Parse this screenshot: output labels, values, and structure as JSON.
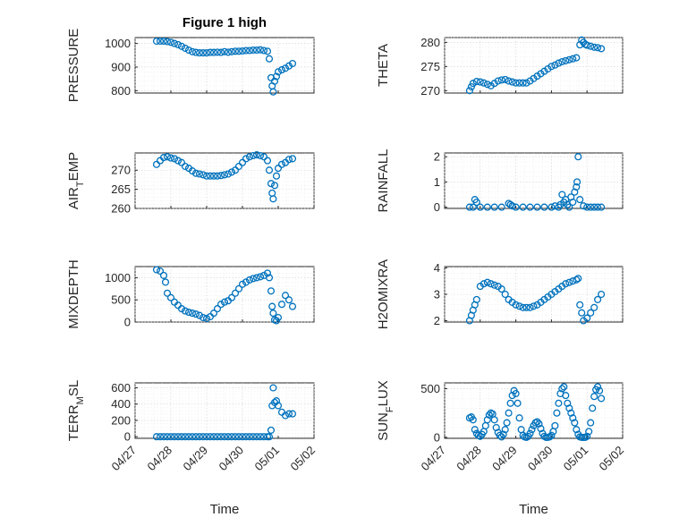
{
  "figure_title": "Figure 1 high",
  "colors": {
    "marker": "#0072bd",
    "axes": "#262626",
    "grid": "#d0d0d0"
  },
  "chart_data": [
    {
      "id": "pressure",
      "type": "scatter",
      "ylabel": "PRESSURE",
      "ylabel_sub": "",
      "ylabel_tail": "",
      "ylim": [
        790,
        1025
      ],
      "yticks": [
        800,
        900,
        1000
      ],
      "grid": true,
      "xlim": [
        0,
        5
      ],
      "xticks": [
        0,
        1,
        2,
        3,
        4,
        5
      ],
      "x": [
        0.6,
        0.7,
        0.8,
        0.9,
        1.0,
        1.1,
        1.2,
        1.3,
        1.4,
        1.5,
        1.6,
        1.7,
        1.8,
        1.9,
        2.0,
        2.1,
        2.2,
        2.3,
        2.4,
        2.5,
        2.6,
        2.7,
        2.8,
        2.9,
        3.0,
        3.1,
        3.2,
        3.3,
        3.4,
        3.5,
        3.6,
        3.7,
        3.75,
        3.8,
        3.83,
        3.86,
        3.9,
        3.95,
        4.0,
        4.1,
        4.2,
        4.3,
        4.4
      ],
      "y": [
        1010,
        1010,
        1010,
        1008,
        1005,
        1000,
        995,
        988,
        980,
        972,
        965,
        962,
        960,
        960,
        960,
        962,
        962,
        963,
        962,
        965,
        963,
        965,
        967,
        967,
        968,
        970,
        970,
        972,
        972,
        973,
        970,
        967,
        935,
        855,
        820,
        795,
        840,
        860,
        880,
        888,
        895,
        905,
        915
      ]
    },
    {
      "id": "theta",
      "type": "scatter",
      "ylabel": "THETA",
      "ylabel_sub": "",
      "ylabel_tail": "",
      "ylim": [
        269.5,
        281
      ],
      "yticks": [
        270,
        275,
        280
      ],
      "grid": true,
      "xlim": [
        0,
        5
      ],
      "xticks": [
        0,
        1,
        2,
        3,
        4,
        5
      ],
      "x": [
        0.7,
        0.75,
        0.8,
        0.9,
        1.0,
        1.1,
        1.2,
        1.3,
        1.4,
        1.5,
        1.6,
        1.7,
        1.8,
        1.9,
        2.0,
        2.1,
        2.2,
        2.3,
        2.4,
        2.5,
        2.6,
        2.7,
        2.8,
        2.9,
        3.0,
        3.1,
        3.2,
        3.3,
        3.4,
        3.5,
        3.6,
        3.7,
        3.8,
        3.85,
        3.9,
        3.95,
        4.0,
        4.1,
        4.2,
        4.3,
        4.4
      ],
      "y": [
        270.0,
        270.8,
        271.5,
        271.9,
        271.8,
        271.6,
        271.3,
        271.0,
        271.5,
        272.0,
        272.2,
        272.3,
        272.0,
        271.8,
        271.6,
        271.6,
        271.6,
        271.6,
        272.0,
        272.5,
        273.0,
        273.5,
        274.0,
        274.5,
        275.0,
        275.3,
        275.7,
        276.0,
        276.2,
        276.4,
        276.6,
        276.8,
        279.5,
        280.5,
        280.0,
        279.6,
        279.4,
        279.2,
        279.0,
        278.9,
        278.7
      ]
    },
    {
      "id": "air_temp",
      "type": "scatter",
      "ylabel": "AIR",
      "ylabel_sub": "T",
      "ylabel_tail": "EMP",
      "ylim": [
        260,
        274.5
      ],
      "yticks": [
        260,
        265,
        270
      ],
      "grid": true,
      "xlim": [
        0,
        5
      ],
      "xticks": [
        0,
        1,
        2,
        3,
        4,
        5
      ],
      "x": [
        0.6,
        0.7,
        0.8,
        0.9,
        1.0,
        1.1,
        1.2,
        1.3,
        1.4,
        1.5,
        1.6,
        1.7,
        1.8,
        1.9,
        2.0,
        2.1,
        2.2,
        2.3,
        2.4,
        2.5,
        2.6,
        2.7,
        2.8,
        2.9,
        3.0,
        3.1,
        3.2,
        3.3,
        3.4,
        3.5,
        3.6,
        3.7,
        3.75,
        3.8,
        3.83,
        3.86,
        3.9,
        3.95,
        4.0,
        4.1,
        4.2,
        4.3,
        4.4
      ],
      "y": [
        271.5,
        272.5,
        273.3,
        273.5,
        273.2,
        273.0,
        272.5,
        272.0,
        271.0,
        270.5,
        269.8,
        269.2,
        269.0,
        268.8,
        268.5,
        268.5,
        268.5,
        268.5,
        268.6,
        268.8,
        269.0,
        269.5,
        270.0,
        271.0,
        272.0,
        273.0,
        273.5,
        273.8,
        274.0,
        273.8,
        273.5,
        272.5,
        270.0,
        266.5,
        264.0,
        262.5,
        266.0,
        268.5,
        270.5,
        271.5,
        272.0,
        272.8,
        273.0
      ]
    },
    {
      "id": "rainfall",
      "type": "scatter",
      "ylabel": "RAINFALL",
      "ylabel_sub": "",
      "ylabel_tail": "",
      "ylim": [
        -0.05,
        2.15
      ],
      "yticks": [
        0,
        1,
        2
      ],
      "grid": true,
      "xlim": [
        0,
        5
      ],
      "xticks": [
        0,
        1,
        2,
        3,
        4,
        5
      ],
      "x": [
        0.7,
        0.8,
        0.85,
        0.9,
        1.0,
        1.2,
        1.4,
        1.6,
        1.8,
        1.85,
        1.9,
        2.0,
        2.2,
        2.4,
        2.6,
        2.8,
        3.0,
        3.1,
        3.2,
        3.25,
        3.3,
        3.35,
        3.4,
        3.45,
        3.5,
        3.55,
        3.6,
        3.65,
        3.7,
        3.72,
        3.75,
        3.8,
        3.9,
        4.0,
        4.1,
        4.2,
        4.3,
        4.4
      ],
      "y": [
        0,
        0,
        0.3,
        0.2,
        0,
        0,
        0,
        0,
        0.15,
        0.1,
        0.05,
        0,
        0,
        0,
        0,
        0,
        0,
        0.05,
        0,
        0.1,
        0.5,
        0.2,
        0.3,
        0.1,
        0,
        0.4,
        0.2,
        0.6,
        0.8,
        1.0,
        2.0,
        0.3,
        0.05,
        0,
        0,
        0,
        0,
        0
      ]
    },
    {
      "id": "mixdepth",
      "type": "scatter",
      "ylabel": "MIXDEPTH",
      "ylabel_sub": "",
      "ylabel_tail": "",
      "ylim": [
        0,
        1250
      ],
      "yticks": [
        0,
        500,
        1000
      ],
      "grid": true,
      "xlim": [
        0,
        5
      ],
      "xticks": [
        0,
        1,
        2,
        3,
        4,
        5
      ],
      "x": [
        0.6,
        0.7,
        0.8,
        0.85,
        0.9,
        1.0,
        1.1,
        1.2,
        1.3,
        1.4,
        1.5,
        1.6,
        1.7,
        1.8,
        1.9,
        2.0,
        2.1,
        2.2,
        2.3,
        2.4,
        2.5,
        2.6,
        2.7,
        2.8,
        2.9,
        3.0,
        3.1,
        3.2,
        3.3,
        3.4,
        3.5,
        3.6,
        3.7,
        3.75,
        3.8,
        3.83,
        3.86,
        3.9,
        3.95,
        4.0,
        4.1,
        4.2,
        4.3,
        4.4
      ],
      "y": [
        1180,
        1150,
        1050,
        900,
        650,
        550,
        450,
        380,
        300,
        250,
        220,
        200,
        180,
        150,
        100,
        80,
        120,
        200,
        300,
        400,
        450,
        480,
        550,
        650,
        750,
        850,
        900,
        950,
        980,
        1000,
        1020,
        1050,
        1100,
        1000,
        700,
        350,
        200,
        50,
        30,
        100,
        400,
        600,
        500,
        350
      ]
    },
    {
      "id": "h2omixra",
      "type": "scatter",
      "ylabel": "H2OMIXRA",
      "ylabel_sub": "",
      "ylabel_tail": "",
      "ylim": [
        1.95,
        4.05
      ],
      "yticks": [
        2,
        3,
        4
      ],
      "grid": true,
      "xlim": [
        0,
        5
      ],
      "xticks": [
        0,
        1,
        2,
        3,
        4,
        5
      ],
      "x": [
        0.7,
        0.75,
        0.8,
        0.85,
        0.9,
        1.0,
        1.1,
        1.2,
        1.3,
        1.4,
        1.5,
        1.6,
        1.7,
        1.8,
        1.9,
        2.0,
        2.1,
        2.2,
        2.3,
        2.4,
        2.5,
        2.6,
        2.7,
        2.8,
        2.9,
        3.0,
        3.1,
        3.2,
        3.3,
        3.4,
        3.5,
        3.6,
        3.7,
        3.75,
        3.8,
        3.85,
        3.9,
        4.0,
        4.1,
        4.2,
        4.3,
        4.4
      ],
      "y": [
        2.0,
        2.2,
        2.4,
        2.6,
        2.8,
        3.3,
        3.4,
        3.45,
        3.4,
        3.35,
        3.3,
        3.2,
        3.0,
        2.8,
        2.7,
        2.6,
        2.55,
        2.5,
        2.5,
        2.5,
        2.55,
        2.6,
        2.7,
        2.8,
        2.9,
        3.0,
        3.1,
        3.2,
        3.3,
        3.4,
        3.45,
        3.5,
        3.55,
        3.6,
        2.6,
        2.3,
        2.0,
        2.1,
        2.3,
        2.5,
        2.8,
        3.0
      ]
    },
    {
      "id": "terr_msl",
      "type": "scatter",
      "ylabel": "TERR",
      "ylabel_sub": "M",
      "ylabel_tail": "SL",
      "ylim": [
        -20,
        660
      ],
      "yticks": [
        0,
        200,
        400,
        600
      ],
      "grid": true,
      "xlim": [
        0,
        5
      ],
      "xticks": [
        0,
        1,
        2,
        3,
        4,
        5
      ],
      "xticklabels": [
        "04/27",
        "04/28",
        "04/29",
        "04/30",
        "05/01",
        "05/02"
      ],
      "xlabel": "Time",
      "x": [
        0.6,
        0.7,
        0.8,
        0.9,
        1.0,
        1.1,
        1.2,
        1.3,
        1.4,
        1.5,
        1.6,
        1.7,
        1.8,
        1.9,
        2.0,
        2.1,
        2.2,
        2.3,
        2.4,
        2.5,
        2.6,
        2.7,
        2.8,
        2.9,
        3.0,
        3.1,
        3.2,
        3.3,
        3.4,
        3.5,
        3.6,
        3.7,
        3.75,
        3.8,
        3.83,
        3.86,
        3.9,
        3.95,
        4.0,
        4.1,
        4.2,
        4.3,
        4.4
      ],
      "y": [
        0,
        0,
        0,
        0,
        0,
        0,
        0,
        0,
        0,
        0,
        0,
        0,
        0,
        0,
        0,
        0,
        0,
        0,
        0,
        0,
        0,
        0,
        0,
        0,
        0,
        0,
        0,
        0,
        0,
        0,
        0,
        0,
        0,
        80,
        380,
        600,
        420,
        440,
        380,
        300,
        260,
        280,
        280
      ]
    },
    {
      "id": "sun_flux",
      "type": "scatter",
      "ylabel": "SUN",
      "ylabel_sub": "F",
      "ylabel_tail": "LUX",
      "ylim": [
        -10,
        560
      ],
      "yticks": [
        0,
        500
      ],
      "grid": true,
      "xlim": [
        0,
        5
      ],
      "xticks": [
        0,
        1,
        2,
        3,
        4,
        5
      ],
      "xticklabels": [
        "04/27",
        "04/28",
        "04/29",
        "04/30",
        "05/01",
        "05/02"
      ],
      "xlabel": "Time",
      "x": [
        0.7,
        0.75,
        0.8,
        0.85,
        0.9,
        0.95,
        1.0,
        1.05,
        1.1,
        1.15,
        1.2,
        1.25,
        1.3,
        1.35,
        1.4,
        1.45,
        1.5,
        1.55,
        1.6,
        1.65,
        1.7,
        1.75,
        1.8,
        1.85,
        1.9,
        1.95,
        2.0,
        2.05,
        2.1,
        2.15,
        2.2,
        2.25,
        2.3,
        2.35,
        2.4,
        2.45,
        2.5,
        2.55,
        2.6,
        2.65,
        2.7,
        2.75,
        2.8,
        2.85,
        2.9,
        2.95,
        3.0,
        3.05,
        3.1,
        3.15,
        3.2,
        3.25,
        3.3,
        3.35,
        3.4,
        3.45,
        3.5,
        3.55,
        3.6,
        3.65,
        3.7,
        3.75,
        3.8,
        3.85,
        3.9,
        3.95,
        4.0,
        4.05,
        4.1,
        4.15,
        4.2,
        4.25,
        4.3,
        4.35,
        4.4
      ],
      "y": [
        200,
        210,
        180,
        80,
        40,
        20,
        10,
        30,
        60,
        120,
        180,
        230,
        250,
        240,
        180,
        100,
        50,
        20,
        5,
        30,
        80,
        150,
        250,
        350,
        430,
        480,
        450,
        350,
        200,
        80,
        20,
        5,
        0,
        10,
        40,
        80,
        120,
        150,
        160,
        140,
        90,
        40,
        10,
        0,
        0,
        5,
        20,
        60,
        120,
        250,
        350,
        450,
        500,
        520,
        430,
        350,
        300,
        250,
        200,
        150,
        80,
        30,
        5,
        0,
        0,
        0,
        10,
        60,
        150,
        300,
        420,
        490,
        520,
        480,
        400
      ]
    }
  ]
}
